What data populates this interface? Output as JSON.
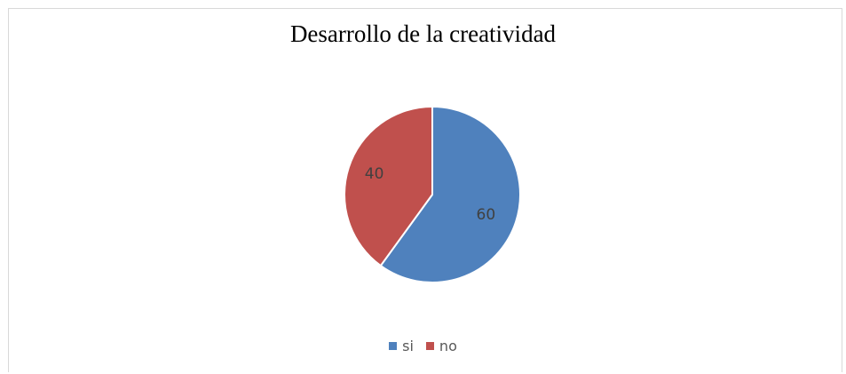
{
  "chart_data": {
    "type": "pie",
    "title": "Desarrollo de la creatividad",
    "categories": [
      "si",
      "no"
    ],
    "values": [
      60,
      40
    ],
    "data_labels": [
      "60",
      "40"
    ],
    "colors": [
      "#4f81bd",
      "#c0504d"
    ],
    "legend_position": "bottom"
  }
}
